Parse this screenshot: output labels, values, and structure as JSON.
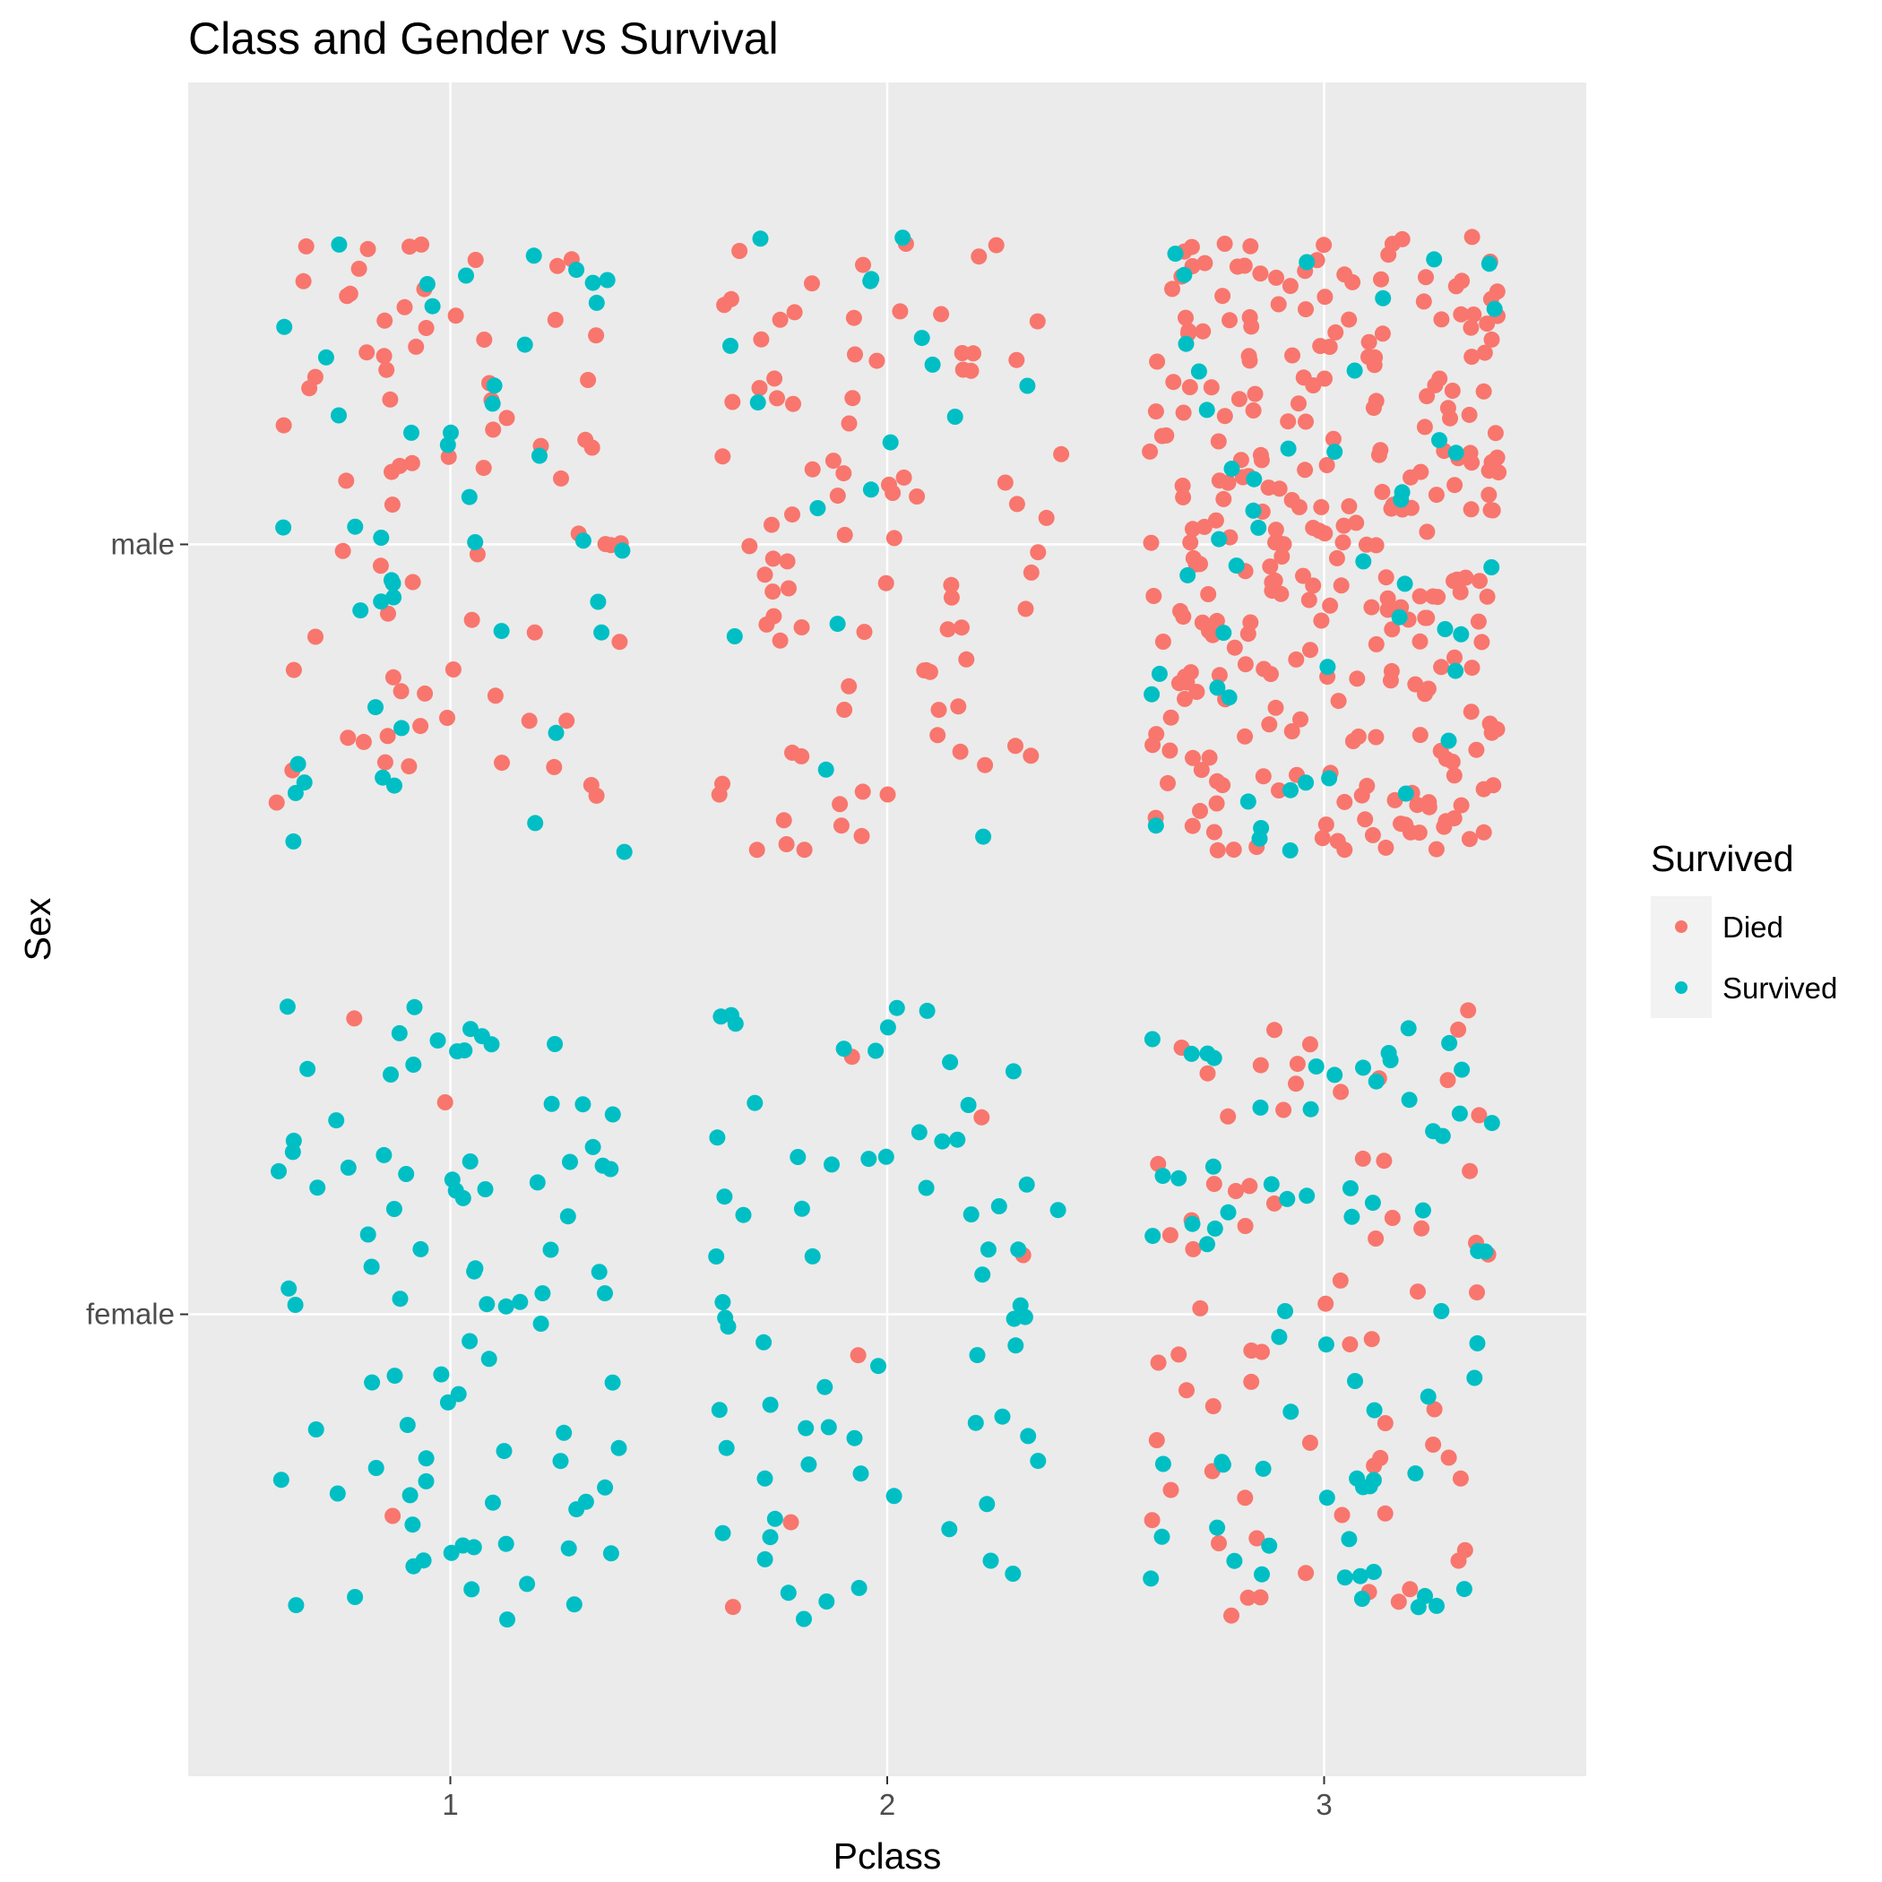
{
  "chart_data": {
    "type": "scatter",
    "title": "Class and Gender vs Survival",
    "xlabel": "Pclass",
    "ylabel": "Sex",
    "x_categories": [
      "1",
      "2",
      "3"
    ],
    "y_categories": [
      "female",
      "male"
    ],
    "jitter": 0.4,
    "grid": true,
    "legend": {
      "title": "Survived",
      "position": "right",
      "entries": [
        "Died",
        "Survived"
      ]
    },
    "colors": {
      "Died": "#F8766D",
      "Survived": "#00BFC4",
      "panel": "#EBEBEB",
      "grid": "#FFFFFF"
    },
    "series": [
      {
        "name": "Died",
        "groups": [
          {
            "x": "1",
            "y": "male",
            "count": 77
          },
          {
            "x": "2",
            "y": "male",
            "count": 91
          },
          {
            "x": "3",
            "y": "male",
            "count": 300
          },
          {
            "x": "1",
            "y": "female",
            "count": 3
          },
          {
            "x": "2",
            "y": "female",
            "count": 6
          },
          {
            "x": "3",
            "y": "female",
            "count": 72
          }
        ]
      },
      {
        "name": "Survived",
        "groups": [
          {
            "x": "1",
            "y": "male",
            "count": 45
          },
          {
            "x": "2",
            "y": "male",
            "count": 17
          },
          {
            "x": "3",
            "y": "male",
            "count": 47
          },
          {
            "x": "1",
            "y": "female",
            "count": 91
          },
          {
            "x": "2",
            "y": "female",
            "count": 70
          },
          {
            "x": "3",
            "y": "female",
            "count": 72
          }
        ]
      }
    ]
  }
}
